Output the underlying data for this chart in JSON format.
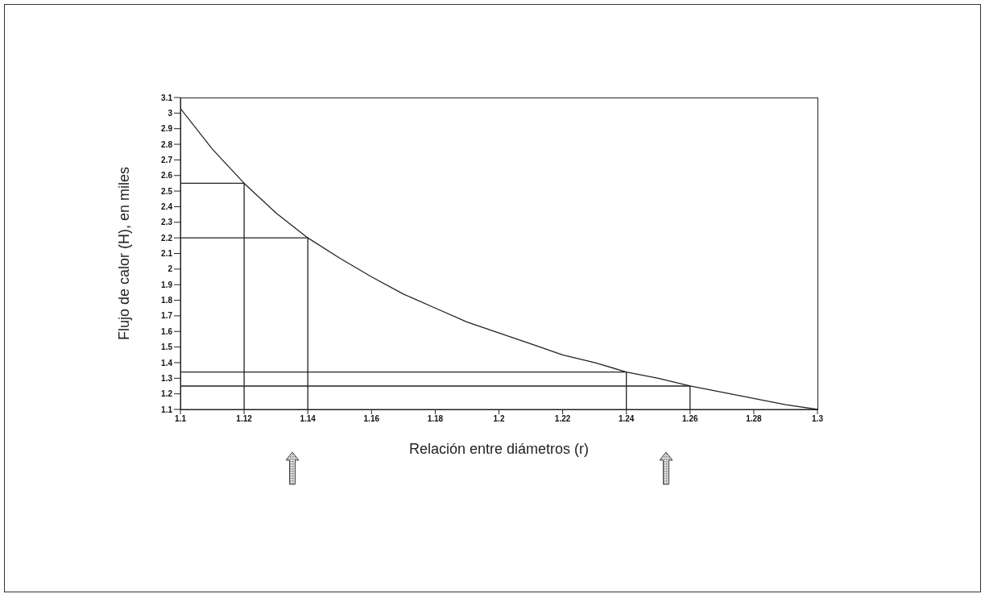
{
  "chart_data": {
    "type": "line",
    "xlabel": "Relación entre diámetros (r)",
    "ylabel": "Flujo de calor (H), en miles",
    "xlim": [
      1.1,
      1.3
    ],
    "xticks": [
      1.1,
      1.12,
      1.14,
      1.16,
      1.18,
      1.2,
      1.22,
      1.24,
      1.26,
      1.28,
      1.3
    ],
    "ylim": [
      1.1,
      3.1
    ],
    "yticks": [
      1.1,
      1.2,
      1.3,
      1.4,
      1.5,
      1.6,
      1.7,
      1.8,
      1.9,
      2,
      2.1,
      2.2,
      2.3,
      2.4,
      2.5,
      2.6,
      2.7,
      2.8,
      2.9,
      3,
      3.1
    ],
    "series": [
      {
        "color": "#222222",
        "x": [
          1.1,
          1.11,
          1.12,
          1.13,
          1.14,
          1.15,
          1.16,
          1.17,
          1.18,
          1.19,
          1.2,
          1.21,
          1.22,
          1.23,
          1.24,
          1.25,
          1.26,
          1.27,
          1.28,
          1.29,
          1.3
        ],
        "values": [
          3.03,
          2.77,
          2.55,
          2.36,
          2.2,
          2.07,
          1.95,
          1.84,
          1.75,
          1.66,
          1.59,
          1.52,
          1.45,
          1.4,
          1.34,
          1.3,
          1.25,
          1.21,
          1.17,
          1.13,
          1.1
        ]
      },
      {
        "color": "#222222",
        "x": [
          1.1,
          1.12,
          1.12
        ],
        "values": [
          2.55,
          2.55,
          1.1
        ]
      },
      {
        "color": "#222222",
        "x": [
          1.1,
          1.14,
          1.14
        ],
        "values": [
          2.2,
          2.2,
          1.1
        ]
      },
      {
        "color": "#222222",
        "x": [
          1.1,
          1.24,
          1.24
        ],
        "values": [
          1.34,
          1.34,
          1.1
        ]
      },
      {
        "color": "#222222",
        "x": [
          1.1,
          1.26,
          1.26
        ],
        "values": [
          1.25,
          1.25,
          1.1
        ]
      }
    ]
  }
}
